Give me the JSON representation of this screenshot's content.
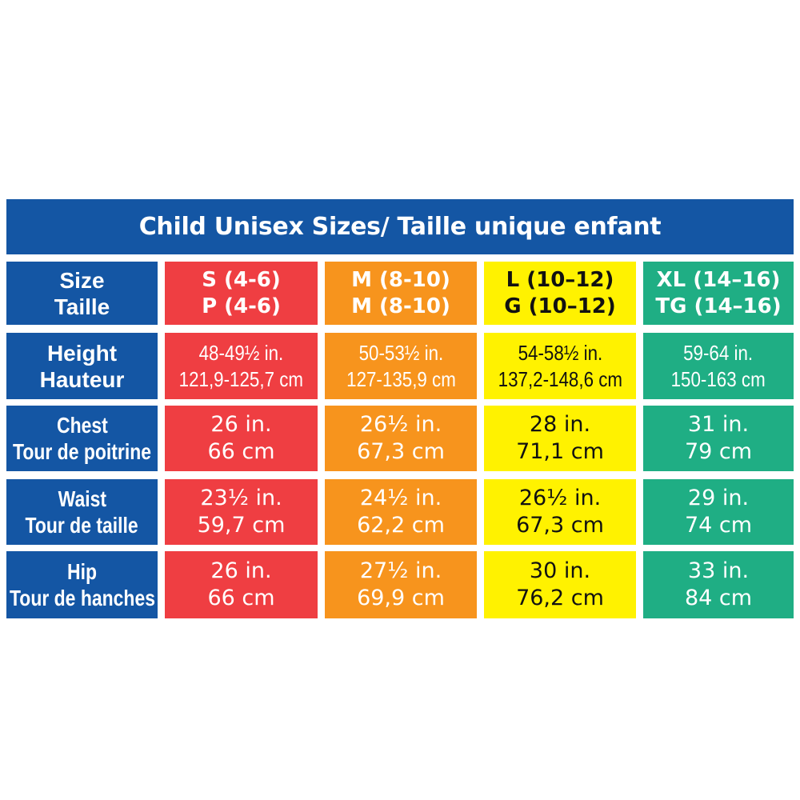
{
  "title": "Child Unisex Sizes/ Taille unique enfant",
  "colors": {
    "header_blue": "#1456a4",
    "size_s": "#ef3e42",
    "size_m": "#f7941d",
    "size_l": "#fff200",
    "size_xl": "#1fae84"
  },
  "row_labels": [
    {
      "en": "Size",
      "fr": "Taille"
    },
    {
      "en": "Height",
      "fr": "Hauteur"
    },
    {
      "en": "Chest",
      "fr": "Tour de poitrine"
    },
    {
      "en": "Waist",
      "fr": "Tour de taille"
    },
    {
      "en": "Hip",
      "fr": "Tour de hanches"
    }
  ],
  "sizes": [
    {
      "en": "S (4-6)",
      "fr": "P (4-6)",
      "height": {
        "in": "48-49½ in.",
        "cm": "121,9-125,7 cm"
      },
      "chest": {
        "in": "26 in.",
        "cm": "66 cm"
      },
      "waist": {
        "in": "23½ in.",
        "cm": "59,7 cm"
      },
      "hip": {
        "in": "26 in.",
        "cm": "66 cm"
      }
    },
    {
      "en": "M (8-10)",
      "fr": "M (8-10)",
      "height": {
        "in": "50-53½ in.",
        "cm": "127-135,9 cm"
      },
      "chest": {
        "in": "26½ in.",
        "cm": "67,3 cm"
      },
      "waist": {
        "in": "24½ in.",
        "cm": "62,2 cm"
      },
      "hip": {
        "in": "27½ in.",
        "cm": "69,9 cm"
      }
    },
    {
      "en": "L (10–12)",
      "fr": "G (10–12)",
      "height": {
        "in": "54-58½ in.",
        "cm": "137,2-148,6 cm"
      },
      "chest": {
        "in": "28 in.",
        "cm": "71,1 cm"
      },
      "waist": {
        "in": "26½ in.",
        "cm": "67,3 cm"
      },
      "hip": {
        "in": "30 in.",
        "cm": "76,2 cm"
      }
    },
    {
      "en": "XL (14–16)",
      "fr": "TG (14–16)",
      "height": {
        "in": "59-64 in.",
        "cm": "150-163 cm"
      },
      "chest": {
        "in": "31 in.",
        "cm": "79 cm"
      },
      "waist": {
        "in": "29 in.",
        "cm": "74 cm"
      },
      "hip": {
        "in": "33 in.",
        "cm": "84 cm"
      }
    }
  ]
}
